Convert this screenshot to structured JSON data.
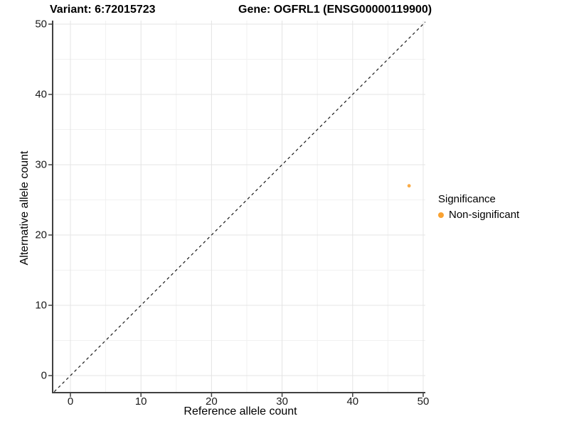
{
  "title_left": "Variant: 6:72015723",
  "title_right": "Gene: OGFRL1 (ENSG00000119900)",
  "legend": {
    "title": "Significance",
    "items": [
      {
        "label": "Non-significant",
        "color": "#F9A232"
      }
    ]
  },
  "colors": {
    "background": "#FFFFFF",
    "grid_major": "#E4E4E4",
    "grid_minor": "#F1F1F1",
    "axis_line": "#404040",
    "tick_mark": "#404040",
    "tick_label": "#1A1A1A",
    "reference_line": "#1A1A1A",
    "point": "#F9A232"
  },
  "chart_data": {
    "type": "scatter",
    "title": "Variant: 6:72015723  /  Gene: OGFRL1 (ENSG00000119900)",
    "xlabel": "Reference allele count",
    "ylabel": "Alternative allele count",
    "xlim": [
      -2.5,
      50.4
    ],
    "ylim": [
      -2.5,
      50.5
    ],
    "x_ticks": [
      0,
      10,
      20,
      30,
      40,
      50
    ],
    "y_ticks": [
      0,
      10,
      20,
      30,
      40,
      50
    ],
    "x_minor_ticks": [
      5,
      15,
      25,
      35,
      45
    ],
    "y_minor_ticks": [
      5,
      15,
      25,
      35,
      45
    ],
    "grid": true,
    "legend_position": "right",
    "reference_line": {
      "kind": "identity",
      "slope": 1,
      "intercept": 0,
      "style": "dashed"
    },
    "series": [
      {
        "name": "Non-significant",
        "color": "#F9A232",
        "points": [
          {
            "x": 48,
            "y": 27
          }
        ]
      }
    ]
  }
}
